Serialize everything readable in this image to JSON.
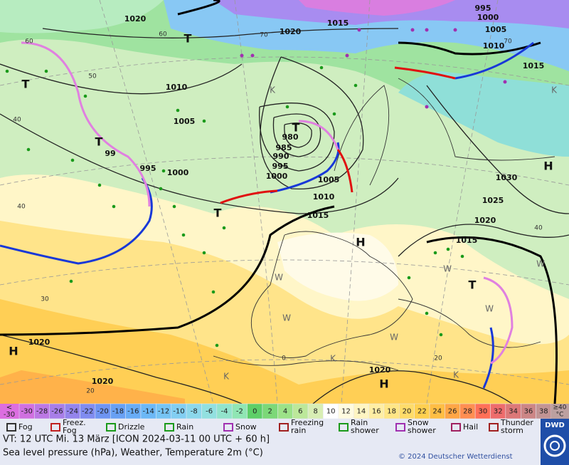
{
  "map": {
    "pressure_labels": [
      "1020",
      "1020",
      "1015",
      "995",
      "1000",
      "1005",
      "1010",
      "1015",
      "1010",
      "1005",
      "980",
      "985",
      "990",
      "995",
      "1000",
      "1005",
      "1010",
      "1015",
      "995",
      "1000",
      "1030",
      "1025",
      "1020",
      "1015",
      "1020",
      "1020",
      "1020",
      "99"
    ],
    "centers": [
      "T",
      "T",
      "T",
      "T",
      "T",
      "H",
      "H",
      "H",
      "H",
      "T"
    ],
    "zone_labels": [
      "K",
      "K",
      "W",
      "W",
      "W",
      "W",
      "W",
      "K",
      "K",
      "K",
      "W"
    ],
    "isotherm_labels": [
      "60",
      "70",
      "60",
      "50",
      "40",
      "40",
      "30",
      "20",
      "0",
      "40",
      "20",
      "70"
    ]
  },
  "colorbar": {
    "low_label": [
      "<",
      "-30"
    ],
    "low_color": "#dc6ee0",
    "steps": [
      {
        "value": -30,
        "color": "#d070e0"
      },
      {
        "value": -28,
        "color": "#bc78e4"
      },
      {
        "value": -26,
        "color": "#a87ee8"
      },
      {
        "value": -24,
        "color": "#9484ec"
      },
      {
        "value": -22,
        "color": "#808cf0"
      },
      {
        "value": -20,
        "color": "#6e94f2"
      },
      {
        "value": -18,
        "color": "#68a0f4"
      },
      {
        "value": -16,
        "color": "#68acf6"
      },
      {
        "value": -14,
        "color": "#6cb8f6"
      },
      {
        "value": -12,
        "color": "#76c4f4"
      },
      {
        "value": -10,
        "color": "#82cef2"
      },
      {
        "value": -8,
        "color": "#8cd8ec"
      },
      {
        "value": -6,
        "color": "#92e0e0"
      },
      {
        "value": -4,
        "color": "#92e4cc"
      },
      {
        "value": -2,
        "color": "#90e6b4"
      },
      {
        "value": 0,
        "color": "#5ecf68"
      },
      {
        "value": 2,
        "color": "#7cd878"
      },
      {
        "value": 4,
        "color": "#9ce288"
      },
      {
        "value": 6,
        "color": "#bce89a"
      },
      {
        "value": 8,
        "color": "#d8eeb4"
      },
      {
        "value": 10,
        "color": "#ffffff"
      },
      {
        "value": 12,
        "color": "#fffbe0"
      },
      {
        "value": 14,
        "color": "#fff5c2"
      },
      {
        "value": 16,
        "color": "#ffeea4"
      },
      {
        "value": 18,
        "color": "#ffe686"
      },
      {
        "value": 20,
        "color": "#ffdc6a"
      },
      {
        "value": 22,
        "color": "#ffd050"
      },
      {
        "value": 24,
        "color": "#ffbe44"
      },
      {
        "value": 26,
        "color": "#ffa646"
      },
      {
        "value": 28,
        "color": "#ff8e52"
      },
      {
        "value": 30,
        "color": "#ff7058"
      },
      {
        "value": 32,
        "color": "#ee6c6c"
      },
      {
        "value": 34,
        "color": "#dc7878"
      },
      {
        "value": 36,
        "color": "#cc8686"
      },
      {
        "value": 38,
        "color": "#c29494"
      }
    ],
    "high_label": [
      "≥40",
      "°C"
    ],
    "high_color": "#bca0a0"
  },
  "legend": [
    [
      "Fog"
    ],
    [
      "Freez.",
      "Fog"
    ],
    [
      "Drizzle"
    ],
    [
      "Rain"
    ],
    [
      "Snow"
    ],
    [
      "Freezing",
      "rain"
    ],
    [
      "Rain",
      "shower"
    ],
    [
      "Snow",
      "shower"
    ],
    [
      "Hail"
    ],
    [
      "Thunder",
      "storm"
    ]
  ],
  "footer": {
    "valid_time": "VT: 12 UTC Mi.  13 März [ICON 2024-03-11  00 UTC + 60 h]",
    "caption": "Sea level pressure (hPa), Weather, Temperature 2m (°C)",
    "copyright": "© 2024 Deutscher Wetterdienst",
    "logo": "DWD"
  }
}
